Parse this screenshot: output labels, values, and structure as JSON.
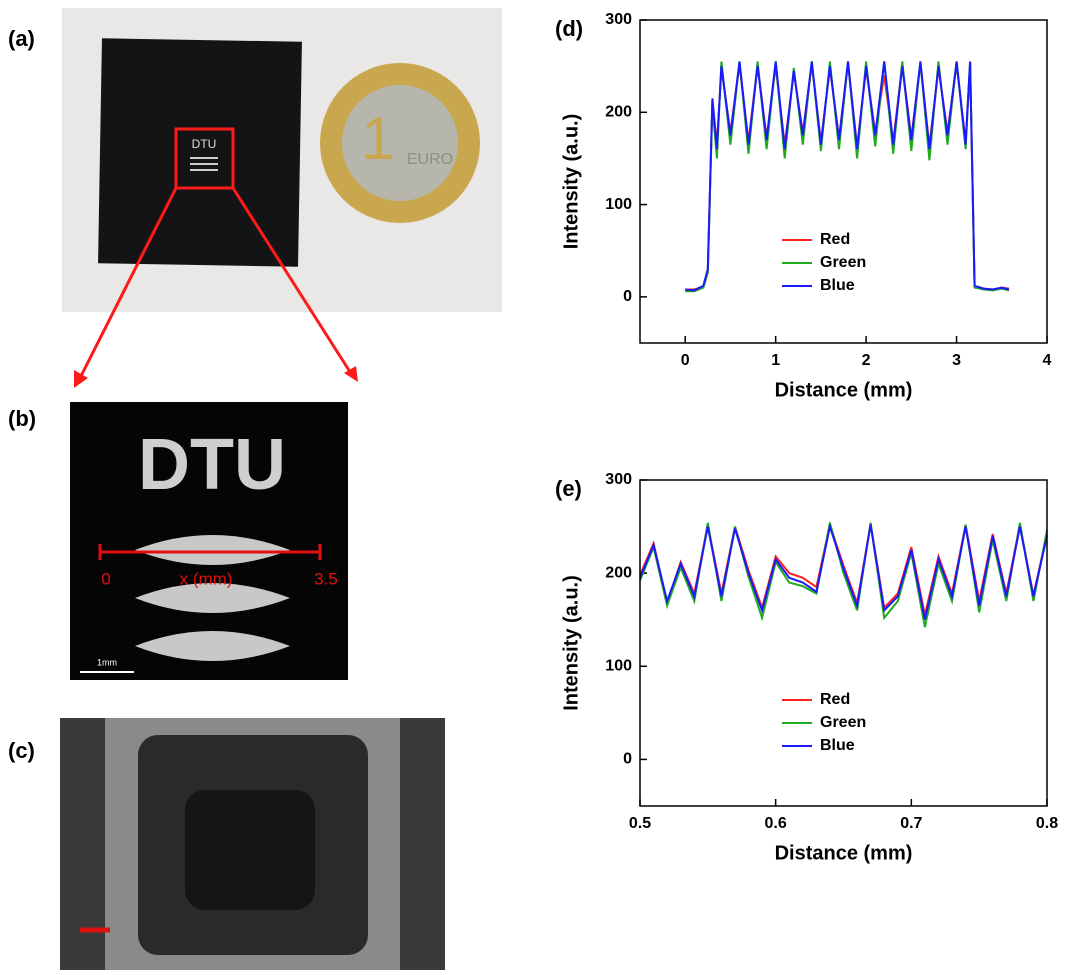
{
  "figure": {
    "panel_labels": [
      "(a)",
      "(b)",
      "(c)"
    ],
    "photo_a": {
      "chip_logo": "DTU",
      "coin_value": "1",
      "coin_text": "EURO"
    },
    "photo_b": {
      "logo": "DTU",
      "ruler_start": "0",
      "ruler_label": "x (mm)",
      "ruler_end": "3.5",
      "scale_bar": "1mm"
    }
  },
  "chart_data": [
    {
      "type": "line",
      "label": "(d)",
      "xlabel": "Distance (mm)",
      "ylabel": "Intensity (a.u.)",
      "x": [
        0,
        0.1,
        0.2,
        0.25,
        0.3,
        0.35,
        0.4,
        0.5,
        0.6,
        0.7,
        0.8,
        0.9,
        1.0,
        1.1,
        1.2,
        1.3,
        1.4,
        1.5,
        1.6,
        1.7,
        1.8,
        1.9,
        2.0,
        2.1,
        2.2,
        2.3,
        2.4,
        2.5,
        2.6,
        2.7,
        2.8,
        2.9,
        3.0,
        3.1,
        3.15,
        3.2,
        3.3,
        3.4,
        3.5,
        3.58
      ],
      "series": [
        {
          "name": "Red",
          "color": "#ff2020",
          "values": [
            8,
            8,
            11,
            28,
            212,
            165,
            248,
            178,
            252,
            168,
            252,
            172,
            250,
            165,
            243,
            178,
            252,
            168,
            248,
            172,
            253,
            163,
            247,
            178,
            240,
            168,
            252,
            172,
            253,
            163,
            248,
            178,
            252,
            168,
            253,
            12,
            9,
            8,
            10,
            9
          ]
        },
        {
          "name": "Green",
          "color": "#1faa1f",
          "values": [
            6,
            6,
            10,
            26,
            208,
            150,
            255,
            165,
            255,
            155,
            255,
            160,
            255,
            150,
            248,
            165,
            255,
            158,
            255,
            160,
            255,
            150,
            255,
            163,
            255,
            155,
            255,
            158,
            255,
            148,
            255,
            165,
            255,
            160,
            255,
            10,
            8,
            7,
            9,
            7
          ]
        },
        {
          "name": "Blue",
          "color": "#1a1aff",
          "values": [
            8,
            7,
            12,
            30,
            215,
            160,
            250,
            175,
            255,
            165,
            250,
            170,
            255,
            160,
            245,
            175,
            255,
            165,
            250,
            170,
            255,
            160,
            250,
            175,
            255,
            165,
            250,
            170,
            255,
            160,
            250,
            175,
            255,
            165,
            255,
            12,
            9,
            8,
            10,
            8
          ]
        }
      ],
      "xlim": [
        -0.5,
        4
      ],
      "xticks": [
        0,
        1,
        2,
        3,
        4
      ],
      "ylim": [
        -50,
        300
      ],
      "yticks": [
        0,
        100,
        200,
        300
      ]
    },
    {
      "type": "line",
      "label": "(e)",
      "xlabel": "Distance (mm)",
      "ylabel": "Intensity (a.u.)",
      "x": [
        0.5,
        0.51,
        0.52,
        0.53,
        0.54,
        0.55,
        0.56,
        0.57,
        0.58,
        0.59,
        0.6,
        0.61,
        0.62,
        0.63,
        0.64,
        0.65,
        0.66,
        0.67,
        0.68,
        0.69,
        0.7,
        0.71,
        0.72,
        0.73,
        0.74,
        0.75,
        0.76,
        0.77,
        0.78,
        0.79,
        0.8
      ],
      "series": [
        {
          "name": "Red",
          "color": "#ff2020",
          "values": [
            198,
            232,
            168,
            212,
            178,
            252,
            178,
            250,
            203,
            163,
            218,
            200,
            195,
            185,
            252,
            208,
            168,
            253,
            163,
            178,
            228,
            155,
            218,
            178,
            252,
            170,
            242,
            178,
            252,
            176,
            242
          ]
        },
        {
          "name": "Green",
          "color": "#1faa1f",
          "values": [
            192,
            228,
            165,
            206,
            170,
            254,
            170,
            250,
            196,
            152,
            212,
            190,
            186,
            178,
            254,
            200,
            160,
            254,
            152,
            170,
            222,
            142,
            210,
            170,
            252,
            158,
            236,
            170,
            254,
            170,
            246
          ]
        },
        {
          "name": "Blue",
          "color": "#1a1aff",
          "values": [
            195,
            230,
            170,
            210,
            175,
            250,
            175,
            248,
            200,
            160,
            215,
            195,
            190,
            180,
            250,
            205,
            165,
            252,
            160,
            175,
            225,
            150,
            215,
            175,
            250,
            165,
            240,
            175,
            250,
            175,
            240
          ]
        }
      ],
      "xlim": [
        0.5,
        0.8
      ],
      "xticks": [
        0.5,
        0.6,
        0.7,
        0.8
      ],
      "ylim": [
        -50,
        300
      ],
      "yticks": [
        0,
        100,
        200,
        300
      ]
    }
  ]
}
